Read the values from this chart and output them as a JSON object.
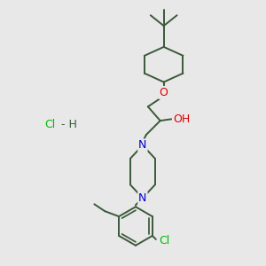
{
  "background_color": "#e8e8e8",
  "fig_size": [
    3.0,
    3.0
  ],
  "dpi": 100,
  "bond_color": "#3a5a3a",
  "bond_width": 1.4,
  "atom_colors": {
    "O": "#dd0000",
    "N": "#0000cc",
    "Cl": "#00bb00",
    "C": "#3a5a3a",
    "H": "#3a5a3a"
  },
  "font_size_atom": 8,
  "hcl_color": "#00bb00",
  "h_color": "#3a5a3a"
}
